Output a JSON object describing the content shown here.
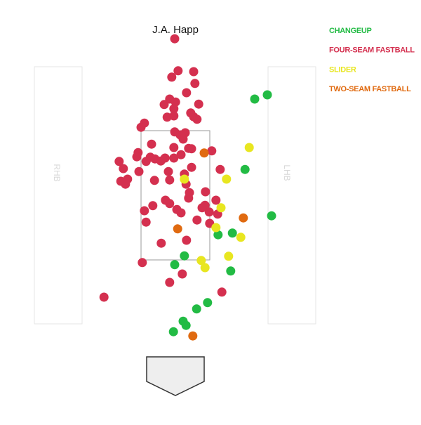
{
  "chart_data": {
    "type": "scatter",
    "title": "J.A. Happ",
    "xlim": [
      -4.2,
      5.8
    ],
    "ylim": [
      -2.3,
      7.7
    ],
    "legend": "right",
    "annotations": [
      "RHB",
      "LHB"
    ],
    "series": [
      {
        "name": "CHANGEUP",
        "color": "#22bb44",
        "x": [
          1.85,
          2.15,
          1.62,
          2.25,
          0.98,
          1.32,
          0.18,
          -0.05,
          1.28,
          0.73,
          0.47,
          0.15,
          0.22,
          -0.08
        ],
        "values": [
          5.35,
          5.45,
          3.68,
          2.58,
          2.13,
          2.17,
          1.63,
          1.42,
          1.27,
          0.52,
          0.37,
          0.08,
          -0.02,
          -0.17
        ]
      },
      {
        "name": "FOUR-SEAM FASTBALL",
        "color": "#d4304f",
        "x": [
          -0.05,
          0.03,
          0.4,
          -0.12,
          0.43,
          0.23,
          -0.17,
          -0.03,
          -0.3,
          0.52,
          -0.07,
          0.33,
          -0.23,
          -0.07,
          0.4,
          0.48,
          -0.77,
          -0.85,
          -0.05,
          0.2,
          0.08,
          0.15,
          -0.6,
          -0.07,
          0.28,
          0.35,
          0.83,
          -0.92,
          0.1,
          -0.95,
          -0.63,
          -0.52,
          -0.38,
          -0.28,
          -0.07,
          -0.73,
          -1.37,
          -1.27,
          0.35,
          1.03,
          -0.9,
          -0.2,
          0.18,
          -1.33,
          -1.22,
          -1.17,
          -0.53,
          -0.17,
          0.22,
          0.3,
          0.68,
          0.28,
          -0.27,
          0.93,
          -0.17,
          -0.57,
          0.67,
          0.6,
          0.0,
          -0.77,
          0.1,
          0.77,
          0.97,
          0.48,
          -0.73,
          0.78,
          0.23,
          -0.37,
          -0.82,
          0.13,
          -0.17,
          1.07,
          -1.73
        ],
        "values": [
          6.78,
          6.02,
          6.0,
          5.87,
          5.72,
          5.5,
          5.35,
          5.28,
          5.22,
          5.23,
          5.12,
          5.02,
          4.92,
          4.95,
          4.93,
          4.87,
          4.78,
          4.68,
          4.57,
          4.55,
          4.5,
          4.4,
          4.28,
          4.2,
          4.18,
          4.17,
          4.12,
          4.08,
          4.03,
          3.98,
          3.97,
          3.93,
          3.88,
          3.95,
          3.95,
          3.87,
          3.87,
          3.7,
          3.73,
          3.68,
          3.63,
          3.63,
          3.57,
          3.4,
          3.33,
          3.45,
          3.42,
          3.43,
          3.33,
          3.13,
          3.15,
          3.0,
          2.95,
          2.95,
          2.87,
          2.82,
          2.83,
          2.77,
          2.73,
          2.7,
          2.65,
          2.67,
          2.62,
          2.48,
          2.43,
          2.4,
          2.0,
          1.93,
          1.47,
          1.2,
          1.0,
          0.77,
          0.65
        ]
      },
      {
        "name": "SLIDER",
        "color": "#e8e620",
        "x": [
          1.72,
          1.18,
          0.18,
          1.05,
          0.93,
          1.52,
          1.23,
          0.58,
          0.67
        ],
        "values": [
          4.2,
          3.45,
          3.45,
          2.77,
          2.3,
          2.07,
          1.62,
          1.52,
          1.35
        ]
      },
      {
        "name": "TWO-SEAM FASTBALL",
        "color": "#e06a10",
        "x": [
          0.65,
          1.58,
          0.02,
          0.38
        ],
        "values": [
          4.07,
          2.53,
          2.27,
          -0.27
        ]
      }
    ]
  }
}
